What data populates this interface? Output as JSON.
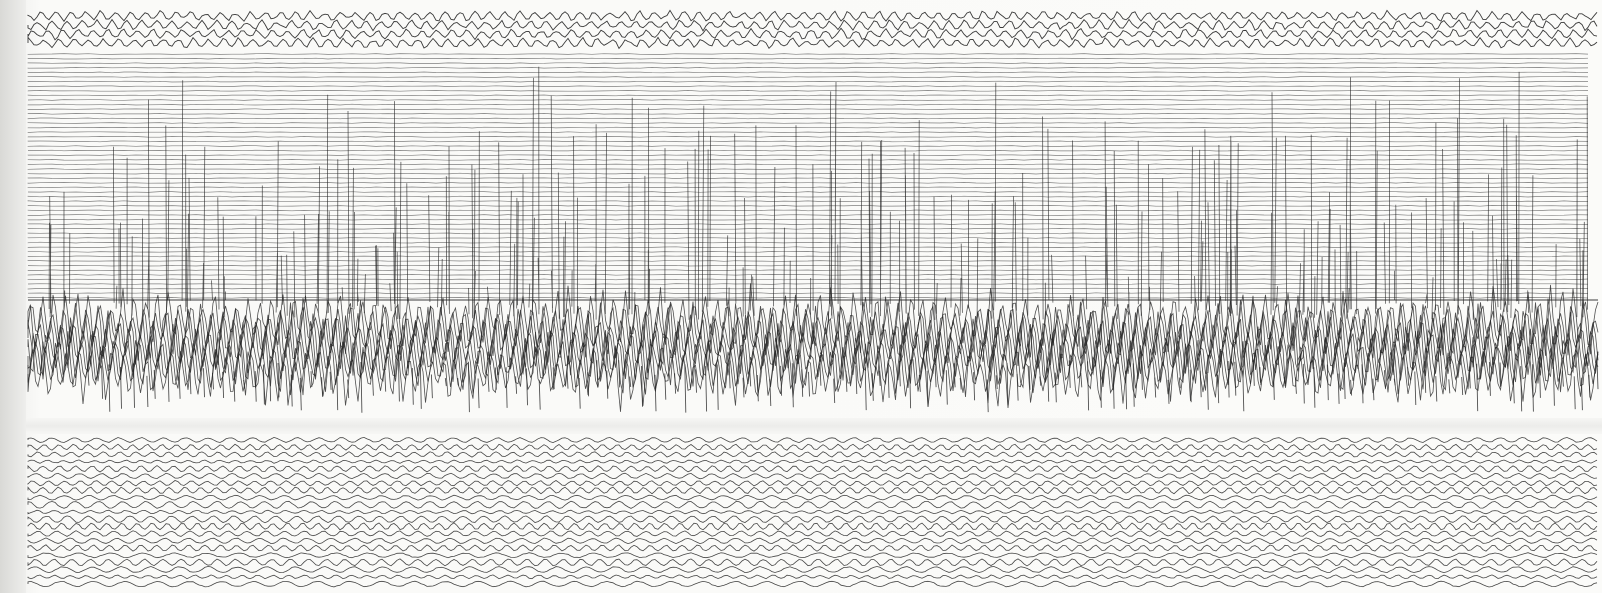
{
  "image": {
    "subject": "seismogram-recording",
    "colors": {
      "paper": "#fbfbf9",
      "ink": "#262626",
      "ink_light": "#6a6a6a"
    }
  }
}
